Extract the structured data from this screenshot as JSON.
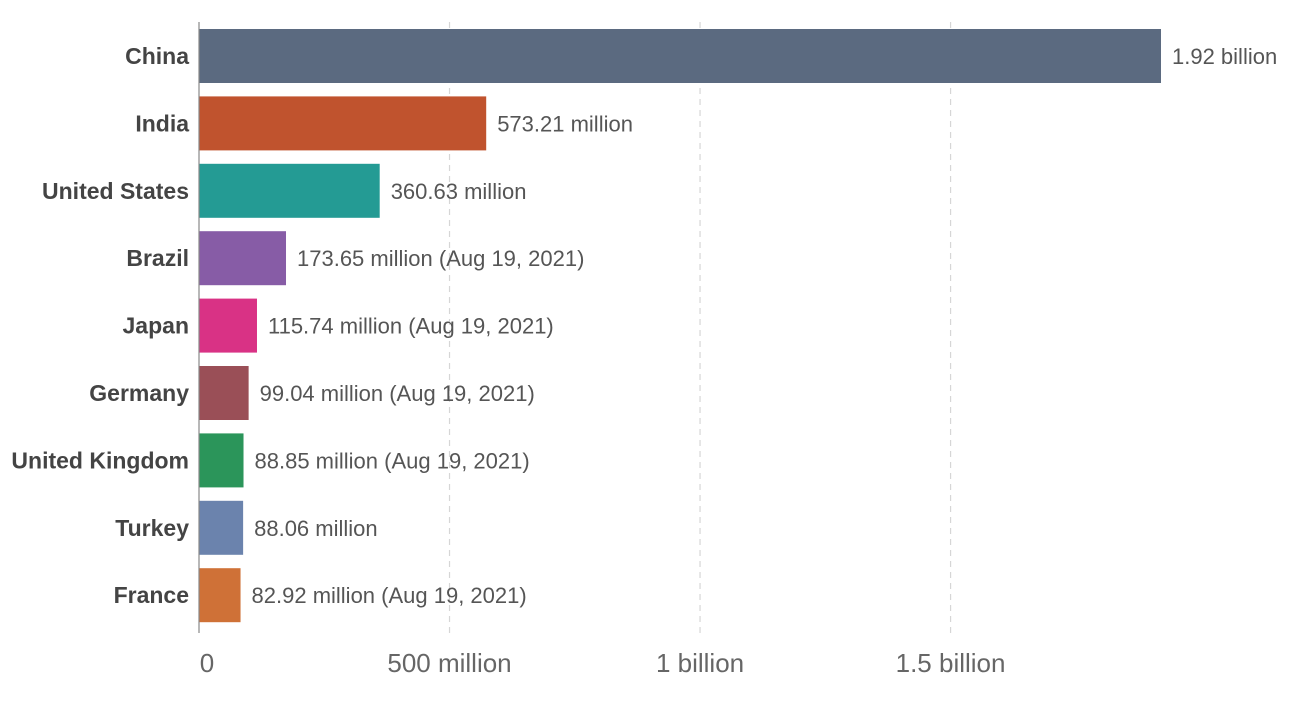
{
  "chart_data": {
    "type": "bar",
    "orientation": "horizontal",
    "categories": [
      "China",
      "India",
      "United States",
      "Brazil",
      "Japan",
      "Germany",
      "United Kingdom",
      "Turkey",
      "France"
    ],
    "values": [
      1920000000,
      573210000,
      360630000,
      173650000,
      115740000,
      99040000,
      88850000,
      88060000,
      82920000
    ],
    "value_labels": [
      "1.92 billion",
      "573.21 million",
      "360.63 million",
      "173.65 million (Aug 19, 2021)",
      "115.74 million (Aug 19, 2021)",
      "99.04 million (Aug 19, 2021)",
      "88.85 million (Aug 19, 2021)",
      "88.06 million",
      "82.92 million (Aug 19, 2021)"
    ],
    "colors": [
      "#5b6a80",
      "#c0532e",
      "#249b94",
      "#875ca6",
      "#d93285",
      "#9a4f57",
      "#2b955a",
      "#6b83ad",
      "#cf7137"
    ],
    "xlim": [
      0,
      1920000000
    ],
    "x_ticks": [
      {
        "value": 0,
        "label": "0"
      },
      {
        "value": 500000000,
        "label": "500 million"
      },
      {
        "value": 1000000000,
        "label": "1 billion"
      },
      {
        "value": 1500000000,
        "label": "1.5 billion"
      }
    ],
    "grid": true
  }
}
